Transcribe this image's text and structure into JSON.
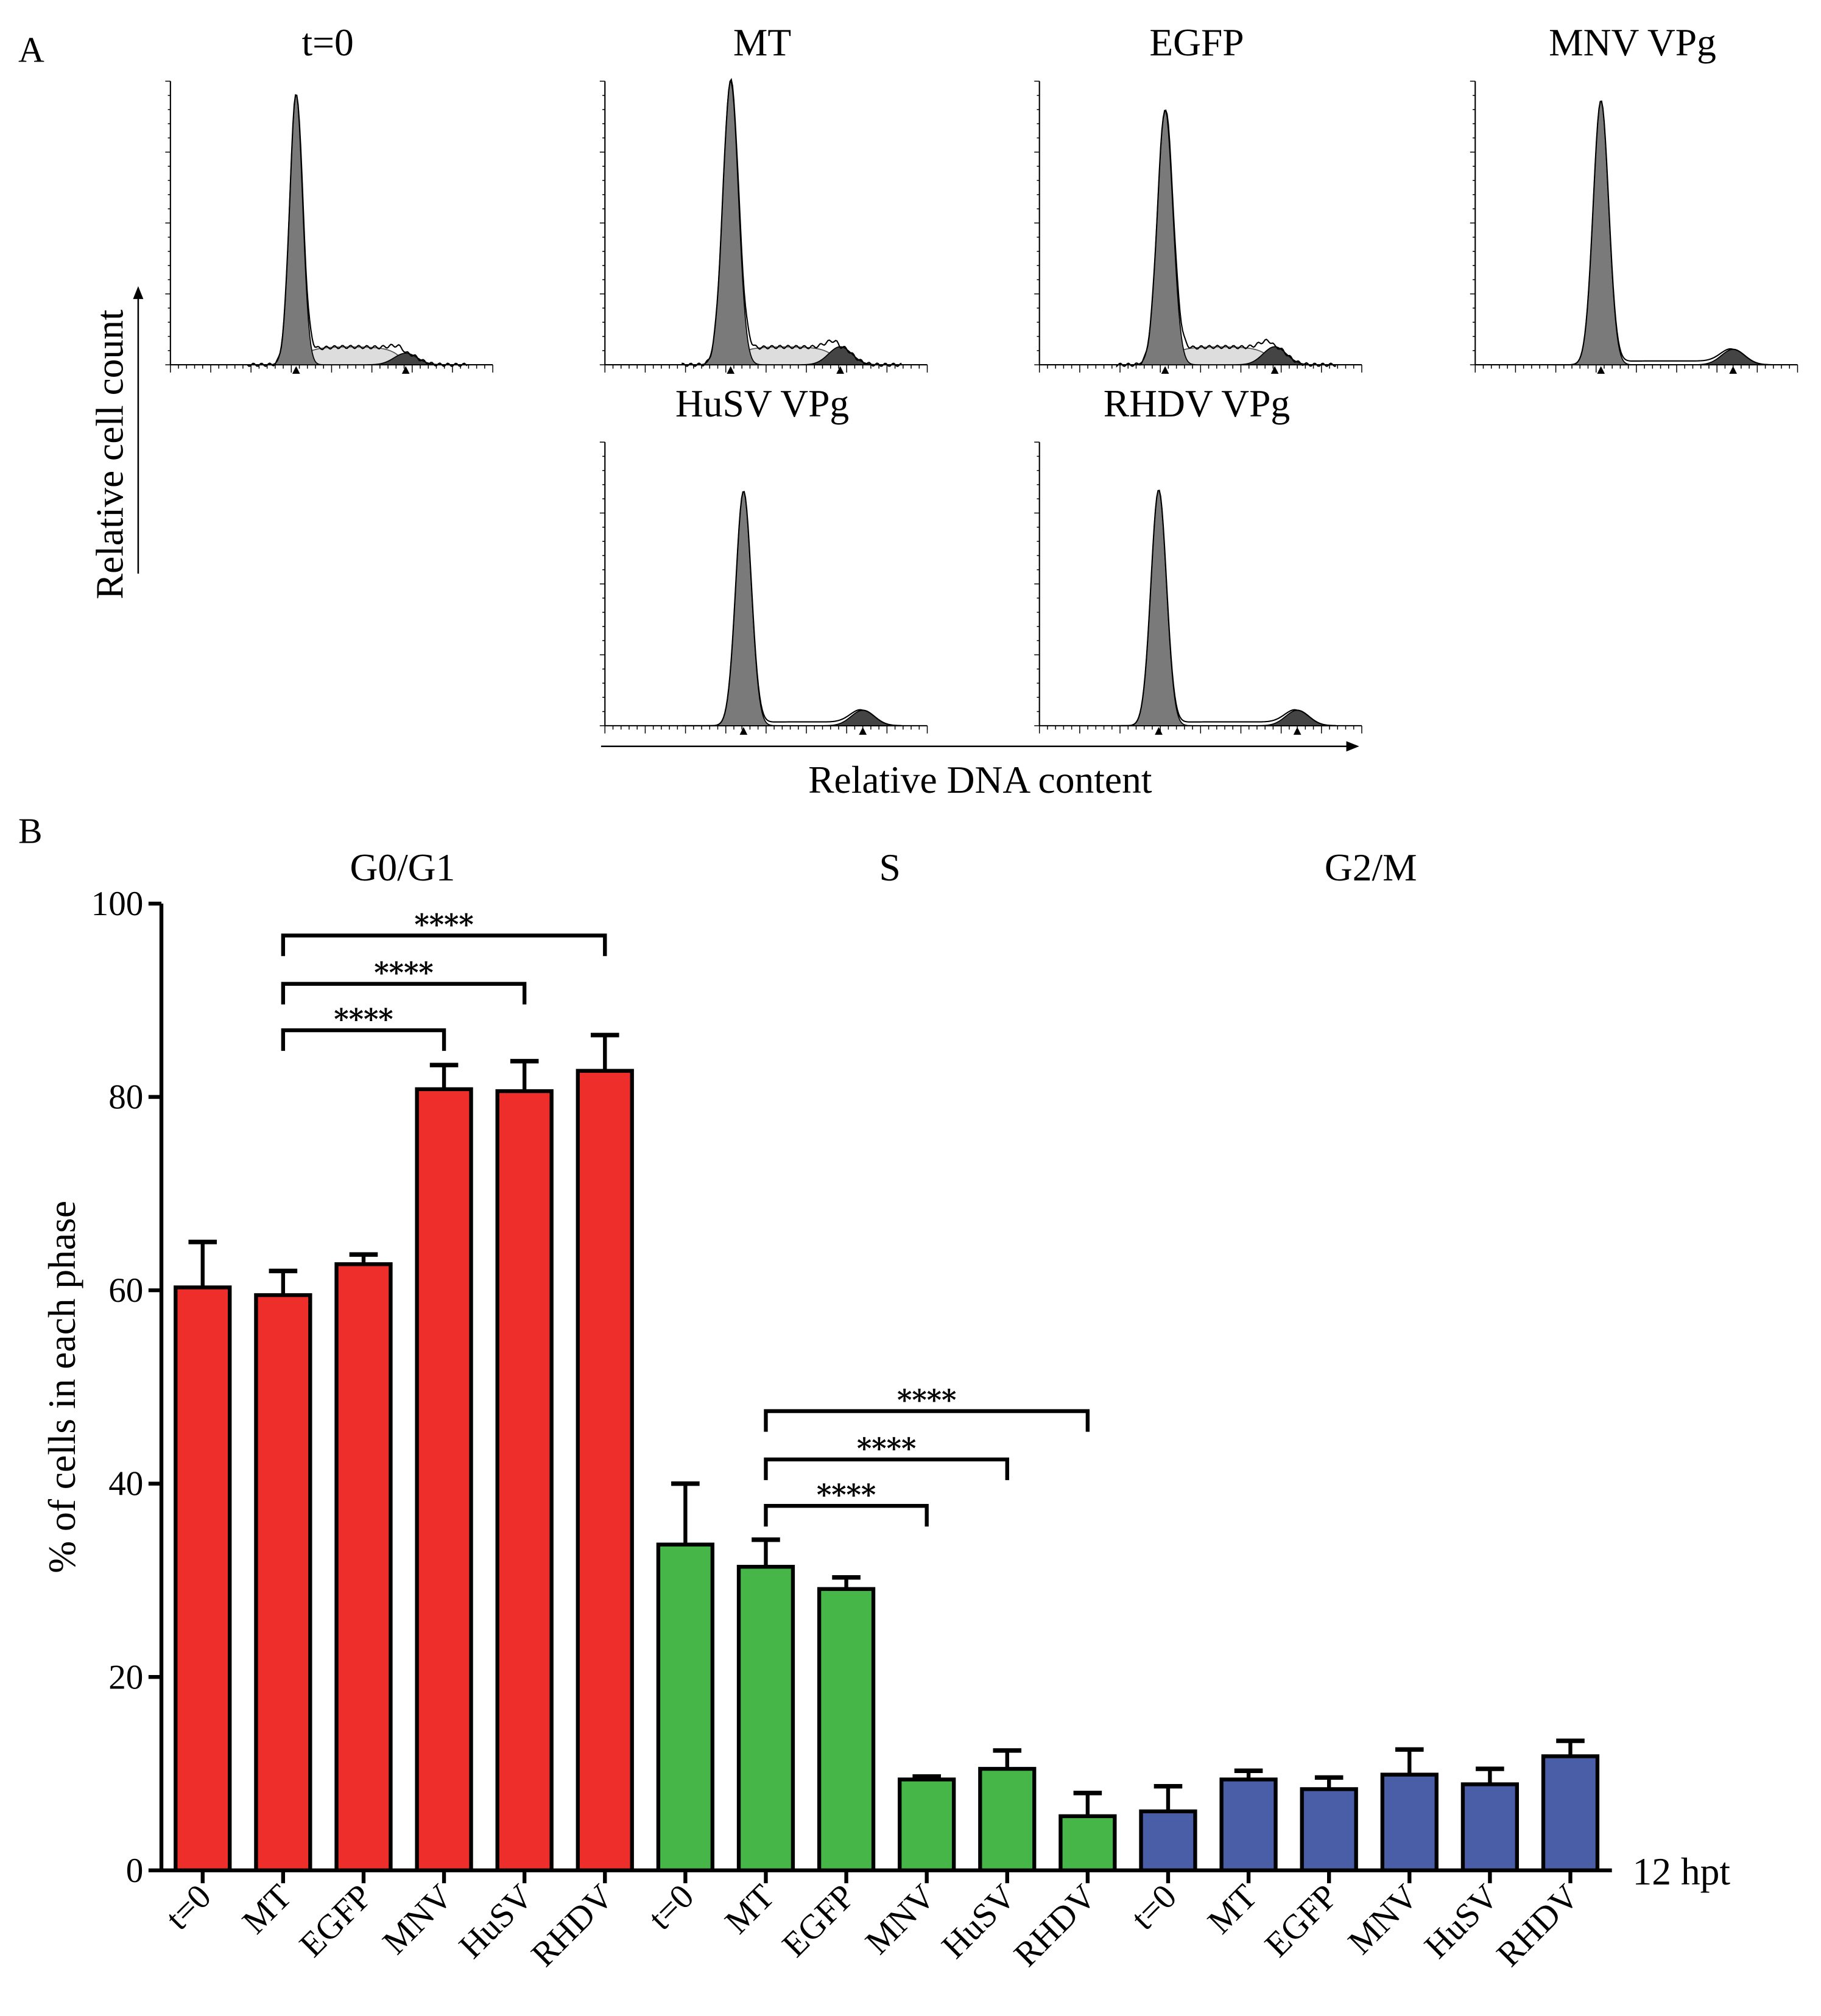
{
  "panel_labels": {
    "a": "A",
    "b": "B"
  },
  "histograms": {
    "ylabel": "Relative cell count",
    "xlabel": "Relative DNA content",
    "panels": [
      {
        "title": "t=0",
        "has_s_phase": true
      },
      {
        "title": "MT",
        "has_s_phase": true
      },
      {
        "title": "EGFP",
        "has_s_phase": true
      },
      {
        "title": "MNV VPg",
        "has_s_phase": false
      },
      {
        "title": "HuSV VPg",
        "has_s_phase": false
      },
      {
        "title": "RHDV VPg",
        "has_s_phase": false
      }
    ]
  },
  "chart_data": {
    "type": "bar",
    "title": "",
    "ylabel": "% of cells in each phase",
    "xlabel": "",
    "ylim": [
      0,
      100
    ],
    "yticks": [
      "0",
      "20",
      "40",
      "60",
      "80",
      "100"
    ],
    "time_label": "12 hpt",
    "groups": [
      "G0/G1",
      "S",
      "G2/M"
    ],
    "categories": [
      "t=0",
      "MT",
      "EGFP",
      "MNV",
      "HuSV",
      "RHDV"
    ],
    "series": [
      {
        "name": "G0/G1",
        "color": "#ee2e2b",
        "values": [
          60.3,
          59.5,
          62.7,
          80.8,
          80.6,
          82.7
        ],
        "error": [
          4.7,
          2.5,
          1.0,
          2.5,
          3.1,
          3.7
        ]
      },
      {
        "name": "S",
        "color": "#46b649",
        "values": [
          33.7,
          31.4,
          29.1,
          9.4,
          10.5,
          5.6
        ],
        "error": [
          6.3,
          2.8,
          1.2,
          0.3,
          1.9,
          2.4
        ]
      },
      {
        "name": "G2/M",
        "color": "#4a5ea8",
        "values": [
          6.1,
          9.4,
          8.4,
          9.9,
          8.9,
          11.8
        ],
        "error": [
          2.6,
          0.9,
          1.2,
          2.6,
          1.6,
          1.6
        ]
      }
    ],
    "significance": [
      {
        "group": 0,
        "from": 1,
        "to": 3,
        "level": 86.9,
        "label": "****"
      },
      {
        "group": 0,
        "from": 1,
        "to": 4,
        "level": 91.7,
        "label": "****"
      },
      {
        "group": 0,
        "from": 1,
        "to": 5,
        "level": 96.7,
        "label": "****"
      },
      {
        "group": 1,
        "from": 1,
        "to": 3,
        "level": 37.7,
        "label": "****"
      },
      {
        "group": 1,
        "from": 1,
        "to": 4,
        "level": 42.5,
        "label": "****"
      },
      {
        "group": 1,
        "from": 1,
        "to": 5,
        "level": 47.5,
        "label": "****"
      }
    ]
  }
}
